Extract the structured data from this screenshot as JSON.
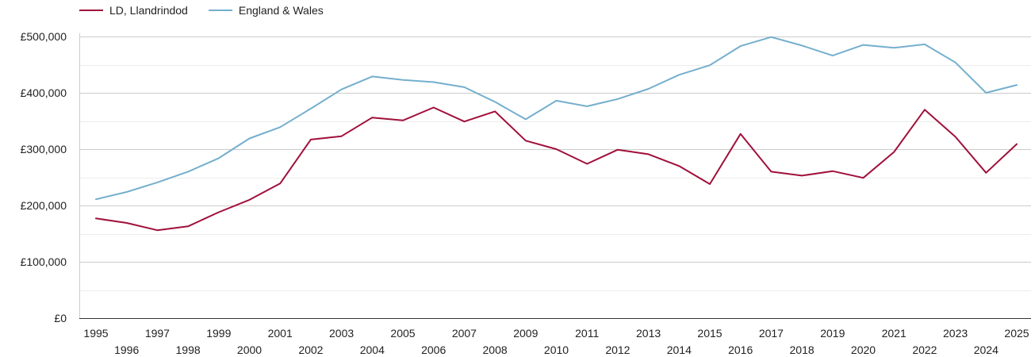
{
  "chart_data": {
    "type": "line",
    "title": "",
    "xlabel": "",
    "ylabel": "",
    "x": [
      1995,
      1996,
      1997,
      1998,
      1999,
      2000,
      2001,
      2002,
      2003,
      2004,
      2005,
      2006,
      2007,
      2008,
      2009,
      2010,
      2011,
      2012,
      2013,
      2014,
      2015,
      2016,
      2017,
      2018,
      2019,
      2020,
      2021,
      2022,
      2023,
      2024,
      2025
    ],
    "x_tick_labels": [
      "1995",
      "1996",
      "1997",
      "1998",
      "1999",
      "2000",
      "2001",
      "2002",
      "2003",
      "2004",
      "2005",
      "2006",
      "2007",
      "2008",
      "2009",
      "2010",
      "2011",
      "2012",
      "2013",
      "2014",
      "2015",
      "2016",
      "2017",
      "2018",
      "2019",
      "2020",
      "2021",
      "2022",
      "2023",
      "2024",
      "2025"
    ],
    "y_ticks": [
      0,
      100000,
      200000,
      300000,
      400000,
      500000
    ],
    "y_tick_labels": [
      "£0",
      "£100,000",
      "£200,000",
      "£300,000",
      "£400,000",
      "£500,000"
    ],
    "ylim": [
      0,
      500000
    ],
    "grid": true,
    "legend_position": "top-left",
    "series": [
      {
        "name": "LD, Llandrindod",
        "color": "#a0103a",
        "values": [
          177000,
          169000,
          156000,
          163000,
          188000,
          210000,
          239000,
          317000,
          323000,
          356000,
          351000,
          374000,
          349000,
          367000,
          315000,
          300000,
          274000,
          299000,
          291000,
          270000,
          238000,
          327000,
          260000,
          253000,
          261000,
          249000,
          295000,
          370000,
          322000,
          258000,
          309000
        ]
      },
      {
        "name": "England & Wales",
        "color": "#74afcd",
        "values": [
          211000,
          224000,
          241000,
          260000,
          284000,
          319000,
          339000,
          372000,
          406000,
          429000,
          423000,
          419000,
          410000,
          384000,
          353000,
          386000,
          376000,
          389000,
          407000,
          432000,
          449000,
          483000,
          499000,
          484000,
          466000,
          485000,
          480000,
          486000,
          454000,
          400000,
          414000
        ]
      }
    ]
  }
}
